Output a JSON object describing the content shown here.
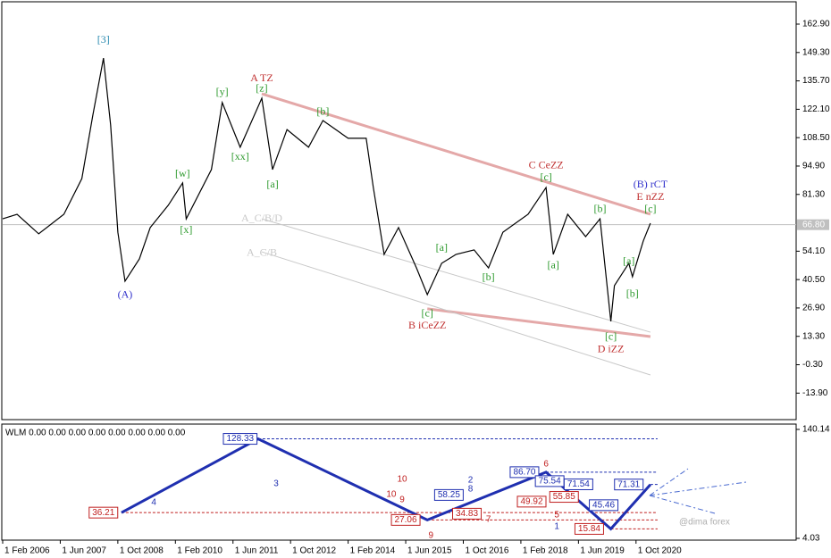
{
  "chart_data": [
    {
      "type": "line",
      "color": "#000000",
      "x": [
        "2006-02",
        "2006-06",
        "2006-12",
        "2007-07",
        "2007-12",
        "2008-03",
        "2008-06",
        "2008-08",
        "2008-10",
        "2008-12",
        "2009-04",
        "2009-07",
        "2009-12",
        "2010-04",
        "2010-05",
        "2010-12",
        "2011-03",
        "2011-08",
        "2012-02",
        "2012-05",
        "2012-09",
        "2013-03",
        "2013-07",
        "2014-02",
        "2014-07",
        "2014-09",
        "2014-12",
        "2015-04",
        "2015-09",
        "2015-12",
        "2016-04",
        "2016-08",
        "2017-01",
        "2017-05",
        "2017-09",
        "2018-04",
        "2018-09",
        "2018-11",
        "2019-03",
        "2019-08",
        "2019-12",
        "2020-03",
        "2020-04",
        "2020-08",
        "2020-09",
        "2020-12",
        "2021-02"
      ],
      "values": [
        69.6,
        71.8,
        62.4,
        71.8,
        88.9,
        118.8,
        146.6,
        114.6,
        63.2,
        39.7,
        50.4,
        65.4,
        76.1,
        86.8,
        69.6,
        93.2,
        125.3,
        103.9,
        127.4,
        93.2,
        112.4,
        103.9,
        116.7,
        108.2,
        108.2,
        84.6,
        52.6,
        65.4,
        46.1,
        33.3,
        48.3,
        52.6,
        54.7,
        46.1,
        63.2,
        71.8,
        84.6,
        52.6,
        71.8,
        61.1,
        69.6,
        20.5,
        37.6,
        48.3,
        41.9,
        59.0,
        67.5
      ],
      "xlim": [
        "2006-02",
        "2024-06"
      ],
      "ylim": [
        -26.6,
        173.6
      ],
      "yticks": [
        {
          "value": 162.9,
          "label": "162.90"
        },
        {
          "value": 149.3,
          "label": "149.30"
        },
        {
          "value": 135.7,
          "label": "135.70"
        },
        {
          "value": 122.1,
          "label": "122.10"
        },
        {
          "value": 108.5,
          "label": "108.50"
        },
        {
          "value": 94.9,
          "label": "94.90"
        },
        {
          "value": 81.3,
          "label": "81.30"
        },
        {
          "value": 54.1,
          "label": "54.10"
        },
        {
          "value": 40.5,
          "label": "40.50"
        },
        {
          "value": 26.9,
          "label": "26.90"
        },
        {
          "value": 13.3,
          "label": "13.30"
        },
        {
          "value": -0.3,
          "label": "-0.30"
        },
        {
          "value": -13.9,
          "label": "-13.90"
        }
      ],
      "last_price": {
        "value": 66.8,
        "label": "66.80"
      },
      "trendlines": [
        {
          "x1": "2012-02",
          "y1": 129.5,
          "x2": "2021-02",
          "y2": 71.8,
          "color": "#e4a8a8"
        },
        {
          "x1": "2015-12",
          "y1": 26.5,
          "x2": "2021-02",
          "y2": 13.2,
          "color": "#e4a8a8"
        },
        {
          "x1": "2012-02",
          "y1": 69.6,
          "x2": "2021-02",
          "y2": 15.3,
          "color": "#c8c8c8"
        },
        {
          "x1": "2012-02",
          "y1": 53.8,
          "x2": "2021-02",
          "y2": -5.2,
          "color": "#c8c8c8"
        }
      ],
      "annotations": [
        {
          "text": "[3]",
          "x": "2008-06",
          "y": 155,
          "color": "#2a8ab0"
        },
        {
          "text": "(A)",
          "x": "2008-12",
          "y": 33,
          "color": "#3333cc"
        },
        {
          "text": "[w]",
          "x": "2010-04",
          "y": 91,
          "color": "#2e9a2e"
        },
        {
          "text": "[x]",
          "x": "2010-05",
          "y": 64,
          "color": "#2e9a2e"
        },
        {
          "text": "[y]",
          "x": "2011-03",
          "y": 130,
          "color": "#2e9a2e"
        },
        {
          "text": "[xx]",
          "x": "2011-08",
          "y": 99,
          "color": "#2e9a2e"
        },
        {
          "text": "[z]",
          "x": "2012-02",
          "y": 131.7,
          "color": "#2e9a2e"
        },
        {
          "text": "A TZ",
          "x": "2012-02",
          "y": 136.8,
          "color": "#c03030"
        },
        {
          "text": "[a]",
          "x": "2012-05",
          "y": 85.9,
          "color": "#2e9a2e"
        },
        {
          "text": "[b]",
          "x": "2013-07",
          "y": 120.6,
          "color": "#2e9a2e"
        },
        {
          "text": "[c]",
          "x": "2015-12",
          "y": 23.9,
          "color": "#2e9a2e"
        },
        {
          "text": "B iCeZZ",
          "x": "2015-12",
          "y": 18.3,
          "color": "#c03030"
        },
        {
          "text": "[a]",
          "x": "2016-04",
          "y": 55.5,
          "color": "#2e9a2e"
        },
        {
          "text": "[b]",
          "x": "2017-05",
          "y": 41.4,
          "color": "#2e9a2e"
        },
        {
          "text": "[c]",
          "x": "2018-09",
          "y": 89.3,
          "color": "#2e9a2e"
        },
        {
          "text": "C CeZZ",
          "x": "2018-09",
          "y": 94.9,
          "color": "#c03030"
        },
        {
          "text": "[a]",
          "x": "2018-11",
          "y": 47,
          "color": "#2e9a2e"
        },
        {
          "text": "[b]",
          "x": "2019-12",
          "y": 74,
          "color": "#2e9a2e"
        },
        {
          "text": "[c]",
          "x": "2020-03",
          "y": 12.8,
          "color": "#2e9a2e"
        },
        {
          "text": "D iZZ",
          "x": "2020-03",
          "y": 6.8,
          "color": "#c03030"
        },
        {
          "text": "[a]",
          "x": "2020-08",
          "y": 49.1,
          "color": "#2e9a2e"
        },
        {
          "text": "[b]",
          "x": "2020-09",
          "y": 33.3,
          "color": "#2e9a2e"
        },
        {
          "text": "[c]",
          "x": "2021-02",
          "y": 74,
          "color": "#2e9a2e"
        },
        {
          "text": "E nZZ",
          "x": "2021-02",
          "y": 79.9,
          "color": "#c03030"
        },
        {
          "text": "(B) rCT",
          "x": "2021-02",
          "y": 85.9,
          "color": "#3333cc"
        },
        {
          "text": "A_C/B/D",
          "x": "2012-02",
          "y": 69.6,
          "color": "#c8c8c8"
        },
        {
          "text": "A_C/B",
          "x": "2012-02",
          "y": 53,
          "color": "#c8c8c8"
        }
      ]
    },
    {
      "type": "line",
      "title": "WLM 0.00 0.00 0.00 0.00 0.00 0.00 0.00 0.00",
      "color": "#1f2fb0",
      "x": [
        "2008-11",
        "2012-01",
        "2015-12",
        "2018-09",
        "2020-03",
        "2021-02"
      ],
      "values": [
        36.21,
        128.33,
        27.06,
        86.7,
        15.84,
        71.31
      ],
      "xlim": [
        "2006-02",
        "2024-06"
      ],
      "xticks": [
        {
          "value": "2006-02",
          "label": "1 Feb 2006"
        },
        {
          "value": "2007-06",
          "label": "1 Jun 2007"
        },
        {
          "value": "2008-10",
          "label": "1 Oct 2008"
        },
        {
          "value": "2010-02",
          "label": "1 Feb 2010"
        },
        {
          "value": "2011-06",
          "label": "1 Jun 2011"
        },
        {
          "value": "2012-10",
          "label": "1 Oct 2012"
        },
        {
          "value": "2014-02",
          "label": "1 Feb 2014"
        },
        {
          "value": "2015-06",
          "label": "1 Jun 2015"
        },
        {
          "value": "2016-10",
          "label": "1 Oct 2016"
        },
        {
          "value": "2018-02",
          "label": "1 Feb 2018"
        },
        {
          "value": "2019-06",
          "label": "1 Jun 2019"
        },
        {
          "value": "2020-10",
          "label": "1 Oct 2020"
        }
      ],
      "ylim": [
        1.81,
        146.8
      ],
      "yticks": [
        140.14,
        4.03
      ],
      "levels": [
        {
          "x": "2008-06",
          "value": 36.21,
          "label": "36.21",
          "color": "#c02020"
        },
        {
          "x": "2011-08",
          "value": 128.33,
          "label": "128.33",
          "color": "#1f2fb0"
        },
        {
          "x": "2015-06",
          "value": 27.06,
          "label": "27.06",
          "color": "#c02020"
        },
        {
          "x": "2016-06",
          "value": 58.25,
          "label": "58.25",
          "color": "#1f2fb0"
        },
        {
          "x": "2016-11",
          "value": 34.83,
          "label": "34.83",
          "color": "#c02020"
        },
        {
          "x": "2018-03",
          "value": 86.7,
          "label": "86.70",
          "color": "#1f2fb0"
        },
        {
          "x": "2018-10",
          "value": 75.54,
          "label": "75.54",
          "color": "#1f2fb0"
        },
        {
          "x": "2019-06",
          "value": 71.54,
          "label": "71.54",
          "color": "#1f2fb0"
        },
        {
          "x": "2019-02",
          "value": 55.85,
          "label": "55.85",
          "color": "#c02020"
        },
        {
          "x": "2018-05",
          "value": 49.92,
          "label": "49.92",
          "color": "#c02020"
        },
        {
          "x": "2020-01",
          "value": 45.46,
          "label": "45.46",
          "color": "#1f2fb0"
        },
        {
          "x": "2019-09",
          "value": 15.84,
          "label": "15.84",
          "color": "#c02020"
        },
        {
          "x": "2020-08",
          "value": 71.31,
          "label": "71.31",
          "color": "#1f2fb0"
        }
      ],
      "counts": [
        {
          "label": "4",
          "x": "2009-08",
          "value": 48.6,
          "color": "#1f2fb0"
        },
        {
          "label": "3",
          "x": "2012-06",
          "value": 72.1,
          "color": "#1f2fb0"
        },
        {
          "label": "10",
          "x": "2015-05",
          "value": 77.7,
          "color": "#c02020"
        },
        {
          "label": "10",
          "x": "2015-02",
          "value": 58.7,
          "color": "#c02020"
        },
        {
          "label": "9",
          "x": "2015-05",
          "value": 52,
          "color": "#c02020"
        },
        {
          "label": "2",
          "x": "2016-12",
          "value": 76.6,
          "color": "#1f2fb0"
        },
        {
          "label": "8",
          "x": "2016-12",
          "value": 65.4,
          "color": "#1f2fb0"
        },
        {
          "label": "6",
          "x": "2018-09",
          "value": 96.6,
          "color": "#c02020"
        },
        {
          "label": "5",
          "x": "2018-12",
          "value": 33,
          "color": "#c02020"
        },
        {
          "label": "7",
          "x": "2017-05",
          "value": 27.5,
          "color": "#c02020"
        },
        {
          "label": "1",
          "x": "2018-12",
          "value": 18.6,
          "color": "#1f2fb0"
        },
        {
          "label": "9",
          "x": "2016-01",
          "value": 7.4,
          "color": "#c02020"
        }
      ],
      "watermark": "@dima forex"
    }
  ]
}
